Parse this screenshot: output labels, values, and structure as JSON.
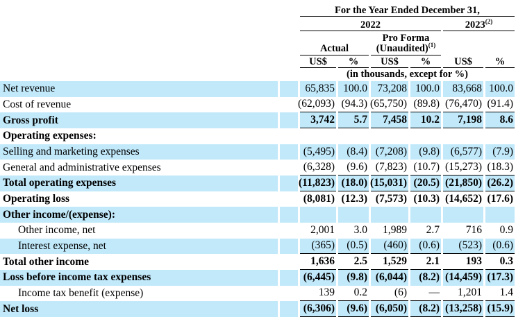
{
  "colors": {
    "row_highlight": "#c1e9fa",
    "rule": "#000000",
    "text": "#000000"
  },
  "table": {
    "title": "For the Year Ended December 31,",
    "year_groups": [
      {
        "text": "2022",
        "sup": ""
      },
      {
        "text": "2023",
        "sup": "(2)"
      }
    ],
    "subgroups": [
      {
        "line1": "Actual",
        "line2": "",
        "sup": ""
      },
      {
        "line1": "Pro Forma",
        "line2": "(Unaudited)",
        "sup": "(1)"
      }
    ],
    "col_headers": [
      "US$",
      "%",
      "US$",
      "%",
      "US$",
      "%"
    ],
    "unit_note": "(in thousands, except for %)",
    "rows": [
      {
        "label": "Net revenue",
        "values": [
          "65,835",
          "100.0",
          "73,208",
          "100.0",
          "83,668",
          "100.0"
        ],
        "bold": false,
        "shaded": true,
        "indent": false,
        "underline": false
      },
      {
        "label": "Cost of revenue",
        "values": [
          "(62,093)",
          "(94.3)",
          "(65,750)",
          "(89.8)",
          "(76,470)",
          "(91.4)"
        ],
        "bold": false,
        "shaded": false,
        "indent": false,
        "underline": true
      },
      {
        "label": "Gross profit",
        "values": [
          "3,742",
          "5.7",
          "7,458",
          "10.2",
          "7,198",
          "8.6"
        ],
        "bold": true,
        "shaded": true,
        "indent": false,
        "underline": true
      },
      {
        "label": "Operating expenses:",
        "values": null,
        "bold": true,
        "shaded": false,
        "indent": false,
        "underline": false
      },
      {
        "label": "Selling and marketing expenses",
        "values": [
          "(5,495)",
          "(8.4)",
          "(7,208)",
          "(9.8)",
          "(6,577)",
          "(7.9)"
        ],
        "bold": false,
        "shaded": true,
        "indent": false,
        "underline": false
      },
      {
        "label": "General and administrative expenses",
        "values": [
          "(6,328)",
          "(9.6)",
          "(7,823)",
          "(10.7)",
          "(15,273)",
          "(18.3)"
        ],
        "bold": false,
        "shaded": false,
        "indent": false,
        "underline": true
      },
      {
        "label": "Total operating expenses",
        "values": [
          "(11,823)",
          "(18.0)",
          "(15,031)",
          "(20.5)",
          "(21,850)",
          "(26.2)"
        ],
        "bold": true,
        "shaded": true,
        "indent": false,
        "underline": true
      },
      {
        "label": "Operating loss",
        "values": [
          "(8,081)",
          "(12.3)",
          "(7,573)",
          "(10.3)",
          "(14,652)",
          "(17.6)"
        ],
        "bold": true,
        "shaded": false,
        "indent": false,
        "underline": false
      },
      {
        "label": "Other income/(expense):",
        "values": null,
        "bold": true,
        "shaded": true,
        "indent": false,
        "underline": false
      },
      {
        "label": "Other income, net",
        "values": [
          "2,001",
          "3.0",
          "1,989",
          "2.7",
          "716",
          "0.9"
        ],
        "bold": false,
        "shaded": false,
        "indent": true,
        "underline": false
      },
      {
        "label": "Interest expense, net",
        "values": [
          "(365)",
          "(0.5)",
          "(460)",
          "(0.6)",
          "(523)",
          "(0.6)"
        ],
        "bold": false,
        "shaded": true,
        "indent": true,
        "underline": true
      },
      {
        "label": "Total other income",
        "values": [
          "1,636",
          "2.5",
          "1,529",
          "2.1",
          "193",
          "0.3"
        ],
        "bold": true,
        "shaded": false,
        "indent": false,
        "underline": true
      },
      {
        "label": "Loss before income tax expenses",
        "values": [
          "(6,445)",
          "(9.8)",
          "(6,044)",
          "(8.2)",
          "(14,459)",
          "(17.3)"
        ],
        "bold": true,
        "shaded": true,
        "indent": false,
        "underline": false
      },
      {
        "label": "Income tax benefit (expense)",
        "values": [
          "139",
          "0.2",
          "(6)",
          "—",
          "1,201",
          "1.4"
        ],
        "bold": false,
        "shaded": false,
        "indent": true,
        "underline": true
      },
      {
        "label": "Net loss",
        "values": [
          "(6,306)",
          "(9.6)",
          "(6,050)",
          "(8.2)",
          "(13,258)",
          "(15.9)"
        ],
        "bold": true,
        "shaded": true,
        "indent": false,
        "underline": true
      }
    ]
  }
}
